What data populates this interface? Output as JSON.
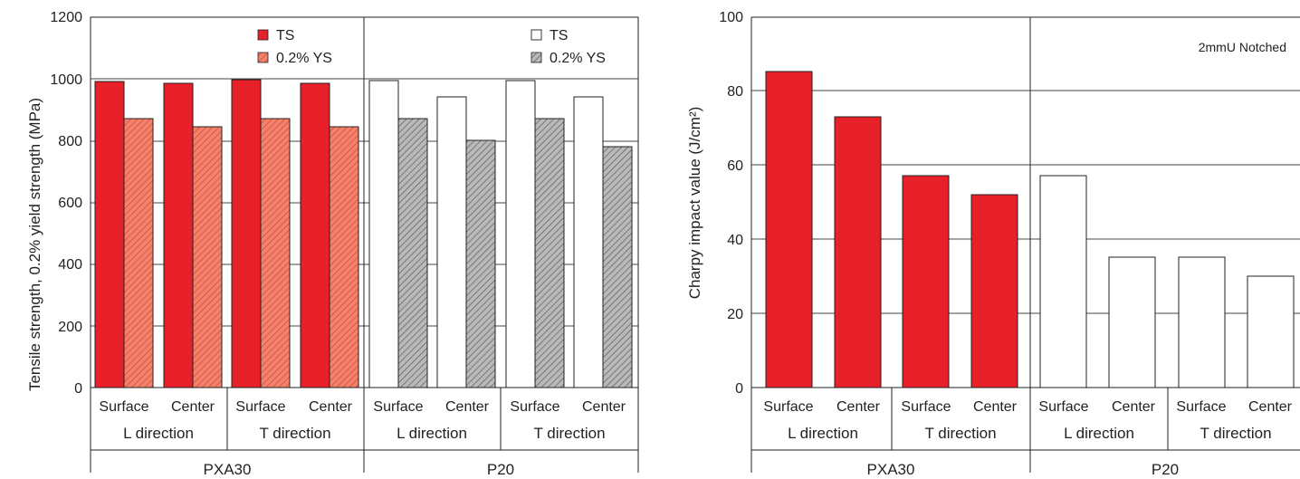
{
  "colors": {
    "ts_fill": "#e8202a",
    "ys_fill": "#f4816c",
    "ys_hatch": "#c9432f",
    "p20_ys_fill": "#b9b9bb",
    "p20_ys_hatch": "#555555",
    "open_fill": "#ffffff",
    "line": "#222222",
    "grid": "#444444"
  },
  "chart_data": [
    {
      "type": "bar",
      "title": "",
      "ylabel": "Tensile strength, 0.2% yield strength (MPa)",
      "ylim": [
        0,
        1200
      ],
      "yticks": [
        0,
        200,
        400,
        600,
        800,
        1000,
        1200
      ],
      "grid": "horizontal",
      "groups": [
        {
          "label": "PXA30",
          "subgroups": [
            {
              "label": "L direction",
              "categories": [
                "Surface",
                "Center"
              ]
            },
            {
              "label": "T direction",
              "categories": [
                "Surface",
                "Center"
              ]
            }
          ]
        },
        {
          "label": "P20",
          "subgroups": [
            {
              "label": "L direction",
              "categories": [
                "Surface",
                "Center"
              ]
            },
            {
              "label": "T direction",
              "categories": [
                "Surface",
                "Center"
              ]
            }
          ]
        }
      ],
      "legends": [
        {
          "placement": "top-right of PXA30 panel",
          "entries": [
            {
              "label": "TS",
              "style": "ts_fill"
            },
            {
              "label": "0.2% YS",
              "style": "ys_hatch"
            }
          ]
        },
        {
          "placement": "top-right of P20 panel",
          "entries": [
            {
              "label": "TS",
              "style": "open"
            },
            {
              "label": "0.2% YS",
              "style": "p20_ys_hatch"
            }
          ]
        }
      ],
      "series": [
        {
          "material": "PXA30",
          "measure": "TS",
          "values": [
            990,
            983,
            997,
            983
          ]
        },
        {
          "material": "PXA30",
          "measure": "0.2% YS",
          "values": [
            870,
            843,
            870,
            843
          ]
        },
        {
          "material": "P20",
          "measure": "TS",
          "values": [
            993,
            940,
            993,
            940
          ]
        },
        {
          "material": "P20",
          "measure": "0.2% YS",
          "values": [
            870,
            800,
            870,
            780
          ]
        }
      ]
    },
    {
      "type": "bar",
      "title": "",
      "ylabel": "Charpy impact value (J/cm²)",
      "ylim": [
        0,
        100
      ],
      "yticks": [
        0,
        20,
        40,
        60,
        80,
        100
      ],
      "grid": "horizontal",
      "annotation": "2mmU Notched",
      "groups": [
        {
          "label": "PXA30",
          "subgroups": [
            {
              "label": "L direction",
              "categories": [
                "Surface",
                "Center"
              ]
            },
            {
              "label": "T direction",
              "categories": [
                "Surface",
                "Center"
              ]
            }
          ]
        },
        {
          "label": "P20",
          "subgroups": [
            {
              "label": "L direction",
              "categories": [
                "Surface",
                "Center"
              ]
            },
            {
              "label": "T direction",
              "categories": [
                "Surface",
                "Center"
              ]
            }
          ]
        }
      ],
      "series": [
        {
          "material": "PXA30",
          "values": [
            85,
            73,
            57,
            52
          ]
        },
        {
          "material": "P20",
          "values": [
            57,
            35,
            35,
            30
          ]
        }
      ]
    }
  ]
}
